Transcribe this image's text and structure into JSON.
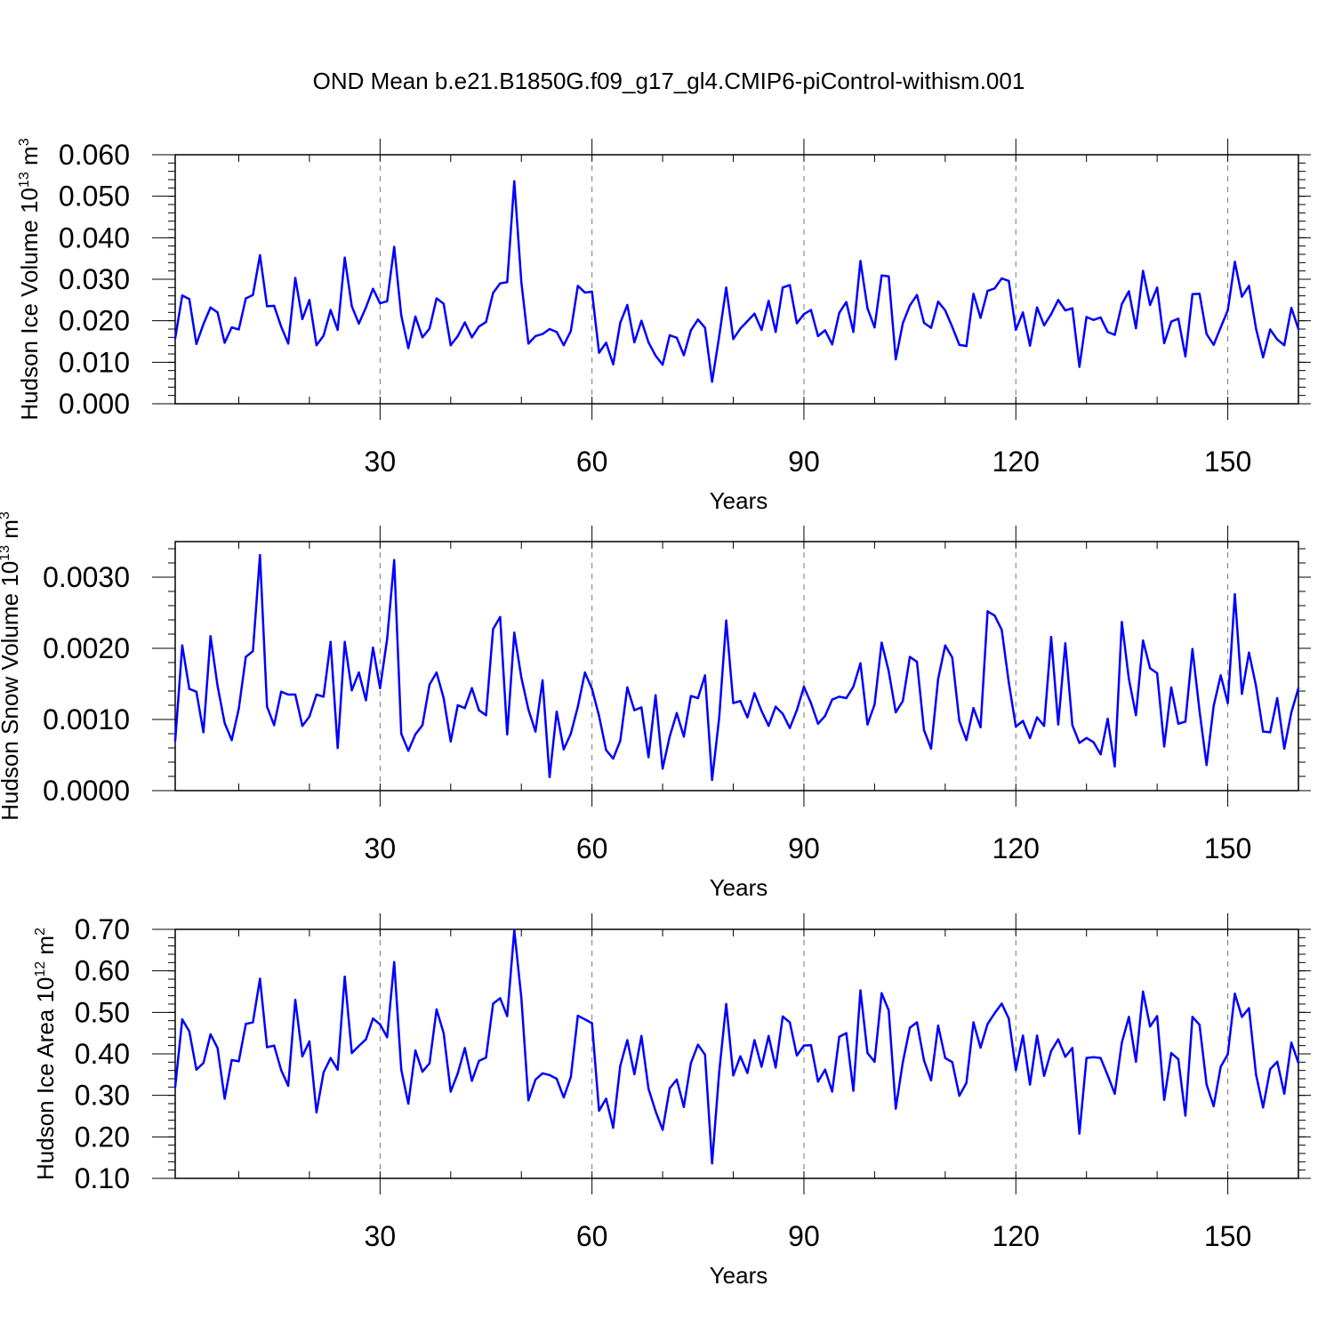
{
  "chart_data": [
    {
      "type": "line",
      "title": "OND Mean b.e21.B1850G.f09_g17_gl4.CMIP6-piControl-withism.001",
      "xlabel": "Years",
      "ylabel": {
        "text": "Hudson Ice Volume 10",
        "exp": "13",
        "unit": " m",
        "unit_exp": "3"
      },
      "xlim": [
        1,
        160
      ],
      "ylim": [
        0.0,
        0.06
      ],
      "xticks": [
        30,
        60,
        90,
        120,
        150
      ],
      "xtick_labels": [
        "30",
        "60",
        "90",
        "120",
        "150"
      ],
      "yticks": [
        0.0,
        0.01,
        0.02,
        0.03,
        0.04,
        0.05,
        0.06
      ],
      "ytick_labels": [
        "0.000",
        "0.010",
        "0.020",
        "0.030",
        "0.040",
        "0.050",
        "0.060"
      ],
      "grid": "dashed vertical at x ticks",
      "series": [
        {
          "name": "Hudson Ice Volume",
          "color": "#0000ff",
          "x_start": 1,
          "values": [
            0.0158,
            0.0261,
            0.0252,
            0.0144,
            0.0192,
            0.0232,
            0.022,
            0.0147,
            0.0184,
            0.0179,
            0.0254,
            0.0262,
            0.0358,
            0.0235,
            0.0236,
            0.0186,
            0.0145,
            0.0303,
            0.0204,
            0.025,
            0.0141,
            0.0164,
            0.0226,
            0.0178,
            0.0352,
            0.0235,
            0.0193,
            0.0232,
            0.0277,
            0.0242,
            0.0247,
            0.0378,
            0.0213,
            0.0134,
            0.021,
            0.016,
            0.0181,
            0.0254,
            0.0241,
            0.0141,
            0.0163,
            0.0196,
            0.016,
            0.0186,
            0.0197,
            0.0267,
            0.029,
            0.0293,
            0.0536,
            0.0293,
            0.0145,
            0.0163,
            0.0168,
            0.018,
            0.0173,
            0.0141,
            0.0175,
            0.0284,
            0.0268,
            0.027,
            0.0123,
            0.0147,
            0.0095,
            0.0195,
            0.0238,
            0.0148,
            0.02,
            0.0148,
            0.0116,
            0.0094,
            0.0165,
            0.0159,
            0.0117,
            0.0177,
            0.0203,
            0.0183,
            0.0053,
            0.0162,
            0.028,
            0.0156,
            0.0181,
            0.0199,
            0.0217,
            0.0178,
            0.0248,
            0.0173,
            0.028,
            0.0286,
            0.0194,
            0.0216,
            0.0226,
            0.0163,
            0.0177,
            0.0143,
            0.0219,
            0.0245,
            0.0173,
            0.0344,
            0.023,
            0.0184,
            0.0309,
            0.0307,
            0.0107,
            0.0194,
            0.0237,
            0.0262,
            0.0195,
            0.0183,
            0.0246,
            0.0225,
            0.0185,
            0.0142,
            0.0139,
            0.0265,
            0.0207,
            0.0272,
            0.0278,
            0.0302,
            0.0296,
            0.0178,
            0.022,
            0.014,
            0.0232,
            0.0189,
            0.0216,
            0.025,
            0.0225,
            0.023,
            0.0089,
            0.0209,
            0.0202,
            0.0208,
            0.0173,
            0.0166,
            0.024,
            0.0271,
            0.0182,
            0.032,
            0.0238,
            0.028,
            0.0146,
            0.0198,
            0.0205,
            0.0114,
            0.0264,
            0.0265,
            0.0168,
            0.0142,
            0.0184,
            0.0225,
            0.0342,
            0.0258,
            0.0284,
            0.0181,
            0.0112,
            0.0179,
            0.0155,
            0.0141,
            0.0231,
            0.018
          ]
        }
      ]
    },
    {
      "type": "line",
      "title": "",
      "xlabel": "Years",
      "ylabel": {
        "text": "Hudson Snow Volume 10",
        "exp": "13",
        "unit": " m",
        "unit_exp": "3"
      },
      "xlim": [
        1,
        160
      ],
      "ylim": [
        0.0,
        0.0035
      ],
      "xticks": [
        30,
        60,
        90,
        120,
        150
      ],
      "xtick_labels": [
        "30",
        "60",
        "90",
        "120",
        "150"
      ],
      "yticks": [
        0.0,
        0.001,
        0.002,
        0.003
      ],
      "ytick_labels": [
        "0.0000",
        "0.0010",
        "0.0020",
        "0.0030"
      ],
      "grid": "dashed vertical at x ticks",
      "series": [
        {
          "name": "Hudson Snow Volume",
          "color": "#0000ff",
          "x_start": 1,
          "values": [
            0.0007,
            0.00204,
            0.00143,
            0.00139,
            0.00082,
            0.00217,
            0.00147,
            0.00095,
            0.00071,
            0.00115,
            0.00188,
            0.00196,
            0.00331,
            0.00118,
            0.00092,
            0.00139,
            0.00135,
            0.00135,
            0.00091,
            0.00104,
            0.00135,
            0.00132,
            0.00209,
            0.0006,
            0.00209,
            0.00141,
            0.00166,
            0.00127,
            0.00201,
            0.00144,
            0.00213,
            0.00324,
            0.0008,
            0.00056,
            0.00079,
            0.00092,
            0.00149,
            0.00166,
            0.0013,
            0.00069,
            0.0012,
            0.00116,
            0.00144,
            0.00113,
            0.00106,
            0.00227,
            0.00244,
            0.00079,
            0.00222,
            0.00159,
            0.00114,
            0.00083,
            0.00155,
            0.00019,
            0.00111,
            0.00058,
            0.0008,
            0.00118,
            0.00166,
            0.00143,
            0.00105,
            0.00057,
            0.00045,
            0.0007,
            0.00145,
            0.00113,
            0.00117,
            0.00047,
            0.00134,
            0.00031,
            0.00076,
            0.00109,
            0.00076,
            0.00133,
            0.0013,
            0.00162,
            0.00015,
            0.00102,
            0.00239,
            0.00123,
            0.00126,
            0.00103,
            0.00137,
            0.00112,
            0.00091,
            0.00118,
            0.00108,
            0.00088,
            0.00113,
            0.00146,
            0.00123,
            0.00094,
            0.00105,
            0.00128,
            0.00132,
            0.0013,
            0.00146,
            0.00179,
            0.00093,
            0.00121,
            0.00208,
            0.00168,
            0.0011,
            0.00126,
            0.00188,
            0.00181,
            0.00085,
            0.00059,
            0.00157,
            0.00204,
            0.00187,
            0.00098,
            0.00071,
            0.00116,
            0.00089,
            0.00252,
            0.00246,
            0.00226,
            0.00152,
            0.0009,
            0.00098,
            0.00074,
            0.00103,
            0.00091,
            0.00216,
            0.00093,
            0.00207,
            0.00092,
            0.00067,
            0.00074,
            0.00068,
            0.00051,
            0.00101,
            0.00034,
            0.00237,
            0.00157,
            0.00106,
            0.00211,
            0.00172,
            0.00165,
            0.00062,
            0.00145,
            0.00094,
            0.00097,
            0.00199,
            0.00112,
            0.00036,
            0.00119,
            0.00162,
            0.00123,
            0.00276,
            0.00136,
            0.00194,
            0.00147,
            0.00083,
            0.00082,
            0.0013,
            0.00059,
            0.0011,
            0.00144
          ]
        }
      ]
    },
    {
      "type": "line",
      "title": "",
      "xlabel": "Years",
      "ylabel": {
        "text": "Hudson Ice Area 10",
        "exp": "12",
        "unit": " m",
        "unit_exp": "2"
      },
      "xlim": [
        1,
        160
      ],
      "ylim": [
        0.1,
        0.7
      ],
      "xticks": [
        30,
        60,
        90,
        120,
        150
      ],
      "xtick_labels": [
        "30",
        "60",
        "90",
        "120",
        "150"
      ],
      "yticks": [
        0.1,
        0.2,
        0.3,
        0.4,
        0.5,
        0.6,
        0.7
      ],
      "ytick_labels": [
        "0.10",
        "0.20",
        "0.30",
        "0.40",
        "0.50",
        "0.60",
        "0.70"
      ],
      "grid": "dashed vertical at x ticks",
      "series": [
        {
          "name": "Hudson Ice Area",
          "color": "#0000ff",
          "x_start": 1,
          "values": [
            0.32,
            0.483,
            0.454,
            0.362,
            0.378,
            0.447,
            0.414,
            0.292,
            0.385,
            0.382,
            0.472,
            0.476,
            0.581,
            0.416,
            0.42,
            0.361,
            0.323,
            0.53,
            0.394,
            0.43,
            0.259,
            0.355,
            0.39,
            0.362,
            0.586,
            0.402,
            0.419,
            0.435,
            0.485,
            0.471,
            0.44,
            0.621,
            0.362,
            0.28,
            0.408,
            0.357,
            0.377,
            0.507,
            0.45,
            0.309,
            0.353,
            0.414,
            0.335,
            0.383,
            0.391,
            0.521,
            0.534,
            0.491,
            0.698,
            0.535,
            0.288,
            0.338,
            0.353,
            0.349,
            0.34,
            0.295,
            0.344,
            0.492,
            0.483,
            0.474,
            0.263,
            0.292,
            0.222,
            0.371,
            0.433,
            0.351,
            0.443,
            0.316,
            0.262,
            0.217,
            0.317,
            0.338,
            0.272,
            0.378,
            0.422,
            0.398,
            0.136,
            0.355,
            0.52,
            0.348,
            0.394,
            0.354,
            0.433,
            0.369,
            0.443,
            0.367,
            0.49,
            0.476,
            0.396,
            0.42,
            0.421,
            0.333,
            0.362,
            0.309,
            0.441,
            0.45,
            0.311,
            0.553,
            0.402,
            0.381,
            0.546,
            0.505,
            0.268,
            0.38,
            0.463,
            0.476,
            0.384,
            0.336,
            0.468,
            0.39,
            0.38,
            0.299,
            0.33,
            0.476,
            0.415,
            0.472,
            0.498,
            0.521,
            0.485,
            0.361,
            0.444,
            0.326,
            0.444,
            0.347,
            0.407,
            0.435,
            0.393,
            0.414,
            0.208,
            0.39,
            0.392,
            0.39,
            0.348,
            0.304,
            0.427,
            0.489,
            0.381,
            0.55,
            0.466,
            0.491,
            0.289,
            0.402,
            0.387,
            0.251,
            0.489,
            0.47,
            0.326,
            0.274,
            0.369,
            0.399,
            0.545,
            0.489,
            0.51,
            0.35,
            0.271,
            0.363,
            0.381,
            0.304,
            0.427,
            0.378
          ]
        }
      ]
    }
  ]
}
